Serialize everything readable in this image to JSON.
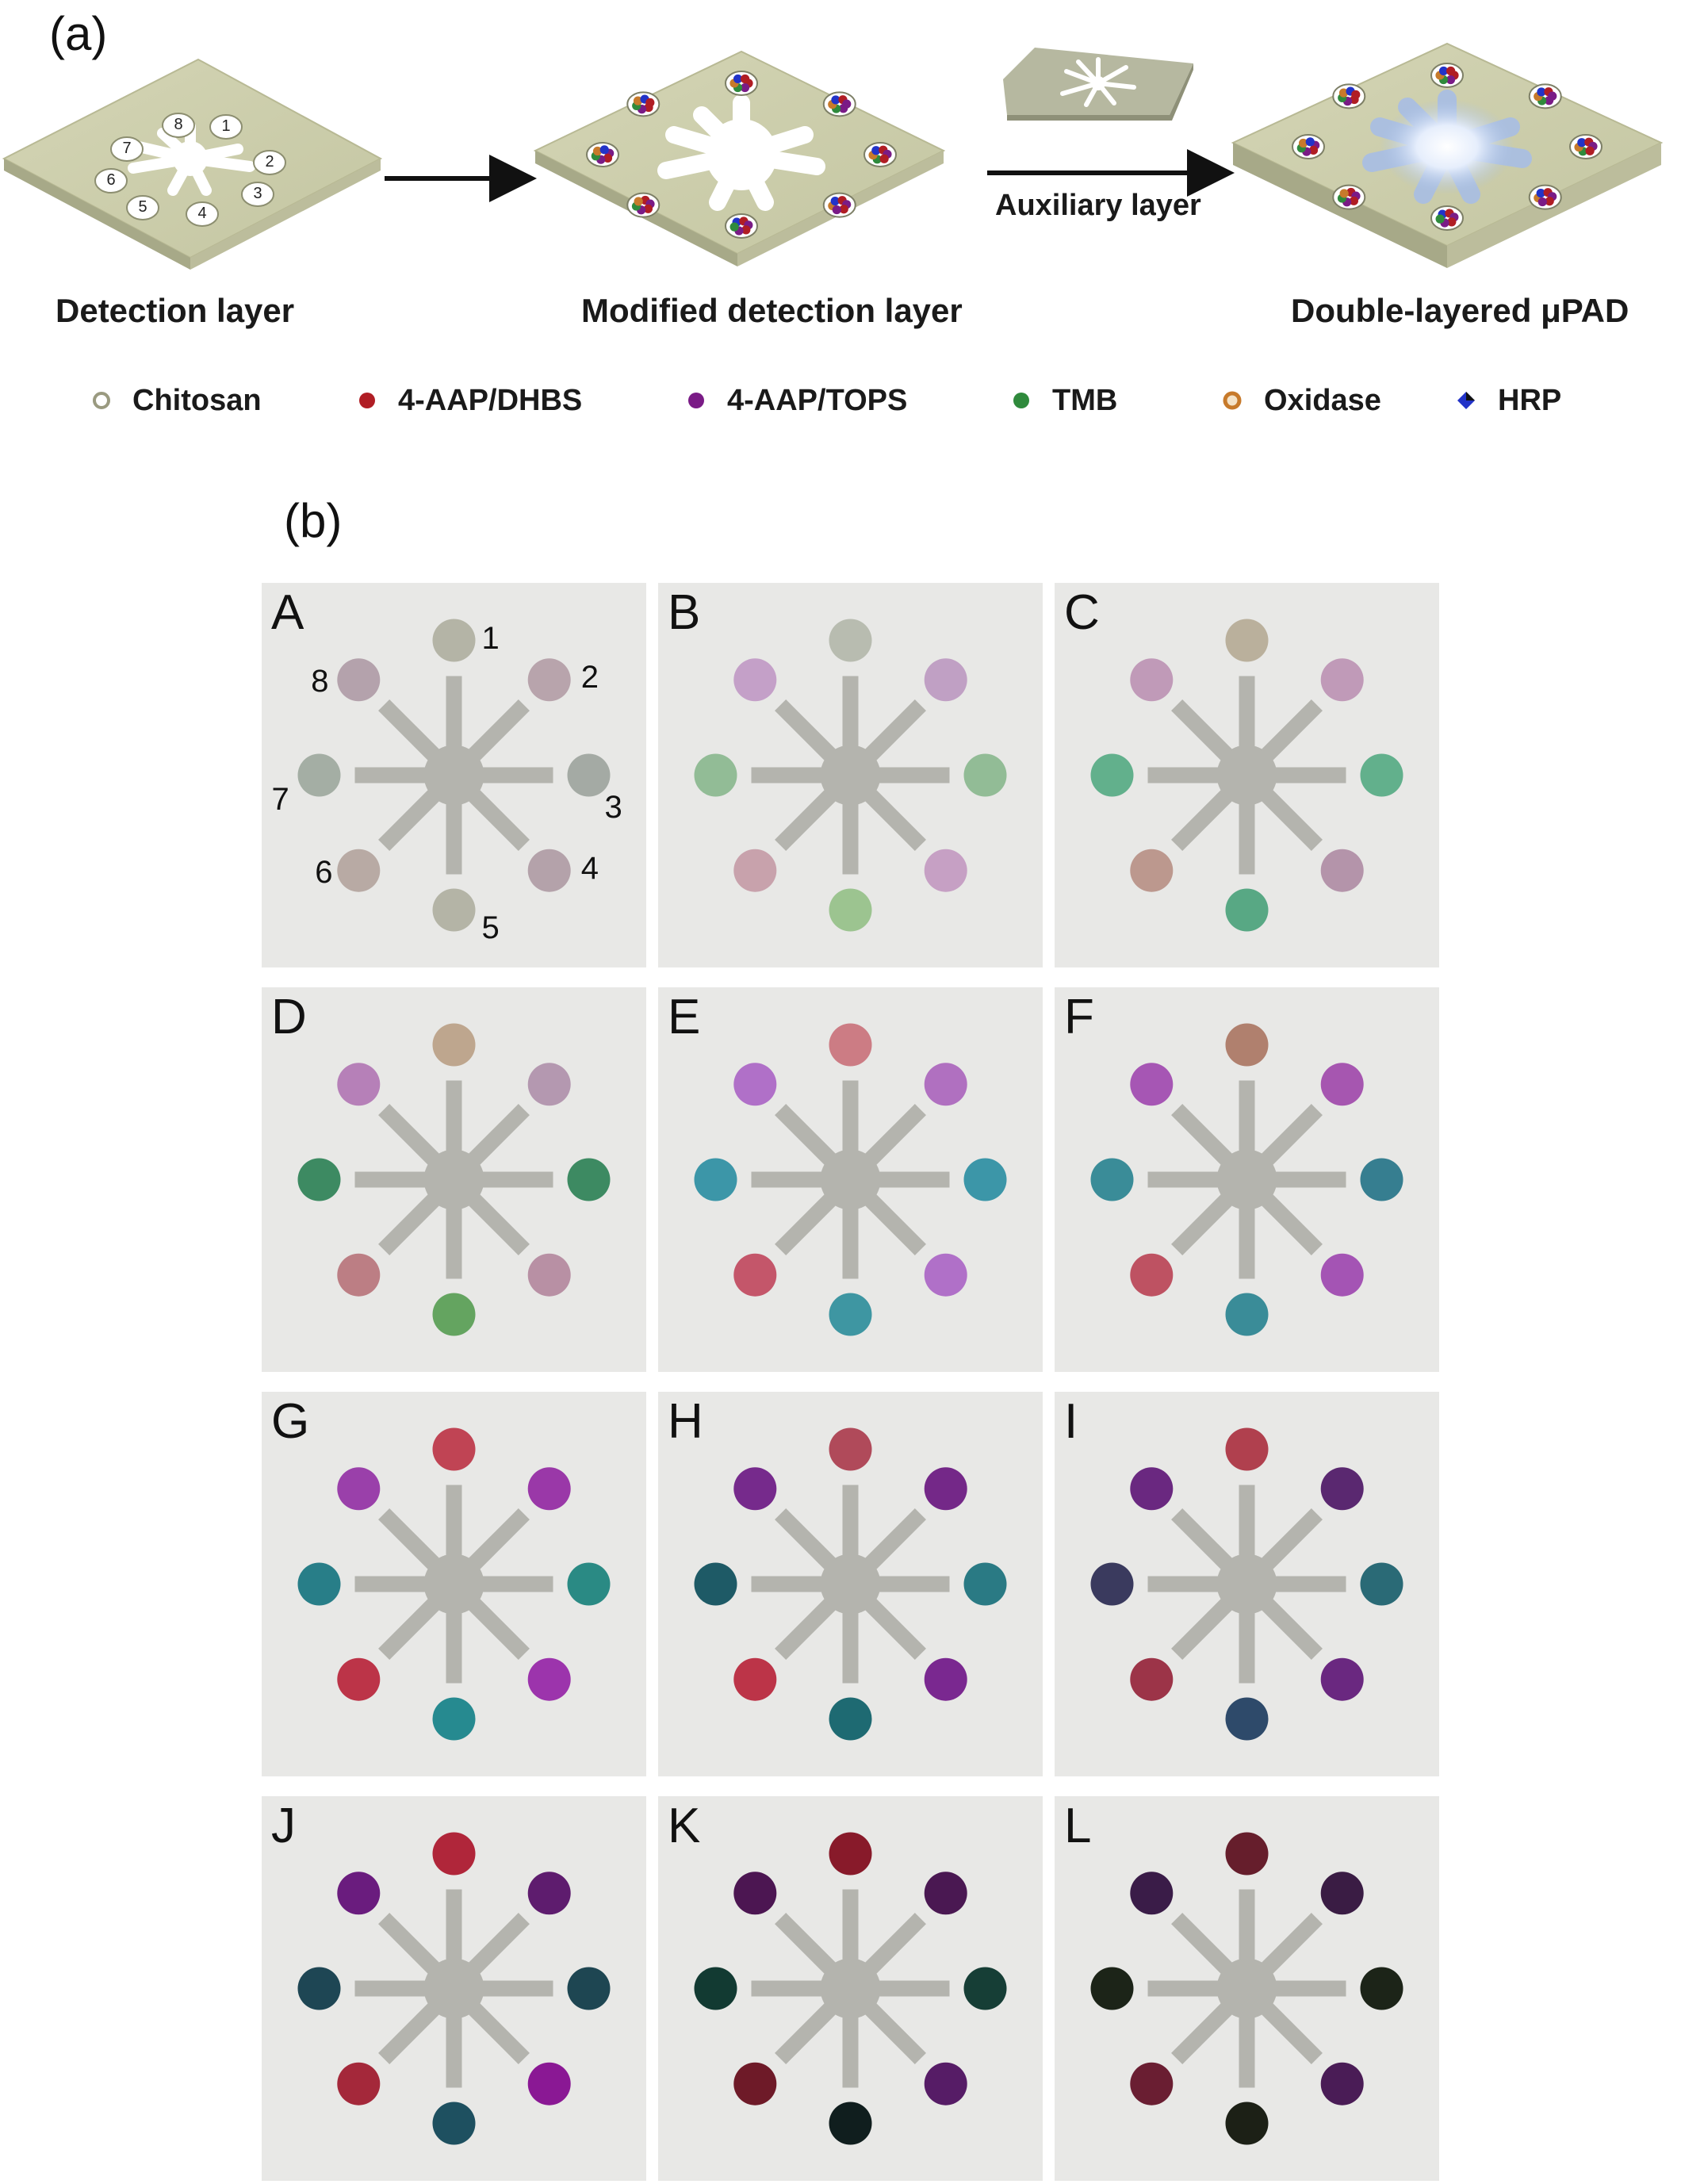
{
  "panel_a_label": "(a)",
  "panel_b_label": "(b)",
  "steps": [
    {
      "label": "Detection layer"
    },
    {
      "label": "Modified detection layer"
    },
    {
      "label": "Double-layered μPAD"
    }
  ],
  "auxiliary_label": "Auxiliary layer",
  "detection_spot_numbers": [
    "1",
    "2",
    "3",
    "4",
    "5",
    "6",
    "7",
    "8"
  ],
  "legend": [
    {
      "label": "Chitosan",
      "color": "#e9ead8",
      "marker": "ring-light"
    },
    {
      "label": "4-AAP/DHBS",
      "color": "#b01d24",
      "marker": "dot"
    },
    {
      "label": "4-AAP/TOPS",
      "color": "#7a1b86",
      "marker": "dot"
    },
    {
      "label": "TMB",
      "color": "#2f8a3c",
      "marker": "dot"
    },
    {
      "label": "Oxidase",
      "color": "#c77a2b",
      "marker": "ring"
    },
    {
      "label": "HRP",
      "color": "#2233c8",
      "marker": "diamond"
    }
  ],
  "tile_spot_numbers": [
    "1",
    "2",
    "3",
    "4",
    "5",
    "6",
    "7",
    "8"
  ],
  "tiles": [
    {
      "letter": "A",
      "colors": [
        "#b4b4a6",
        "#b8a4ac",
        "#a4aaa4",
        "#b4a2aa",
        "#b4b4a6",
        "#b8aaa4",
        "#a4aea4",
        "#b4a2ac"
      ]
    },
    {
      "letter": "B",
      "colors": [
        "#b8bcb0",
        "#c0a0c4",
        "#92bc96",
        "#c6a0c4",
        "#9cc490",
        "#c8a2ac",
        "#92bc96",
        "#c4a0c8"
      ]
    },
    {
      "letter": "C",
      "colors": [
        "#bab09c",
        "#c09ab8",
        "#62b08c",
        "#b494aa",
        "#58a884",
        "#bc988e",
        "#62b08c",
        "#c09ab8"
      ]
    },
    {
      "letter": "D",
      "colors": [
        "#bea68e",
        "#b498b0",
        "#3d8a62",
        "#b890a4",
        "#64a460",
        "#bc7e84",
        "#3d8a62",
        "#b680b8"
      ]
    },
    {
      "letter": "E",
      "colors": [
        "#cc7c84",
        "#b070c0",
        "#3c96a8",
        "#b070c8",
        "#3e96a2",
        "#c4566a",
        "#3c96a8",
        "#b070c8"
      ]
    },
    {
      "letter": "F",
      "colors": [
        "#b0806e",
        "#a656b0",
        "#367e90",
        "#a454b4",
        "#3a8c98",
        "#be5262",
        "#3a8c98",
        "#a656b4"
      ]
    },
    {
      "letter": "G",
      "colors": [
        "#c04454",
        "#9a38a8",
        "#2a8a84",
        "#9c34ac",
        "#268a90",
        "#bc3448",
        "#287e88",
        "#9a40aa"
      ]
    },
    {
      "letter": "H",
      "colors": [
        "#b04a5a",
        "#742888",
        "#2a7a84",
        "#7a2890",
        "#1e6a72",
        "#bc3448",
        "#1e5a66",
        "#762a8c"
      ]
    },
    {
      "letter": "I",
      "colors": [
        "#b0404e",
        "#5a2870",
        "#2a6a76",
        "#6a2880",
        "#2e4a6a",
        "#9c3448",
        "#3a3a5e",
        "#6a2880"
      ]
    },
    {
      "letter": "J",
      "colors": [
        "#b0263a",
        "#5e1c6e",
        "#1e4652",
        "#8a1894",
        "#1e5060",
        "#a4283a",
        "#1e4654",
        "#6a1c7e"
      ]
    },
    {
      "letter": "K",
      "colors": [
        "#881a2a",
        "#4a1852",
        "#163e36",
        "#561c66",
        "#101e1e",
        "#6e1a28",
        "#123a32",
        "#4c1652"
      ]
    },
    {
      "letter": "L",
      "colors": [
        "#661e2c",
        "#3a1c44",
        "#1c2418",
        "#4a1c56",
        "#1c2016",
        "#6a1e32",
        "#1c2418",
        "#3a1c48"
      ]
    }
  ]
}
